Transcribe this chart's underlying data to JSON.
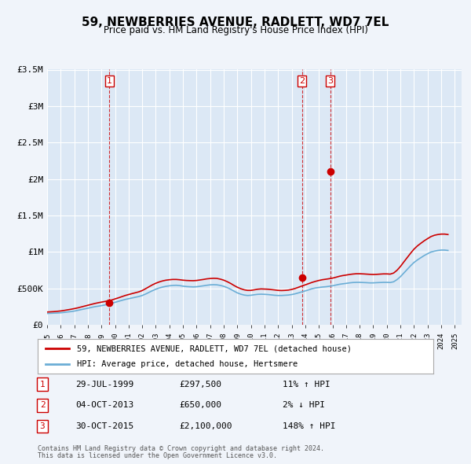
{
  "title": "59, NEWBERRIES AVENUE, RADLETT, WD7 7EL",
  "subtitle": "Price paid vs. HM Land Registry's House Price Index (HPI)",
  "background_color": "#f0f4fa",
  "plot_bg_color": "#dce8f5",
  "grid_color": "#ffffff",
  "ylabel": "",
  "ylim": [
    0,
    3500000
  ],
  "yticks": [
    0,
    500000,
    1000000,
    1500000,
    2000000,
    2500000,
    3000000,
    3500000
  ],
  "ytick_labels": [
    "£0",
    "£500K",
    "£1M",
    "£1.5M",
    "£2M",
    "£2.5M",
    "£3M",
    "£3.5M"
  ],
  "xlim_start": 1995.0,
  "xlim_end": 2025.5,
  "transactions": [
    {
      "num": 1,
      "date": "29-JUL-1999",
      "price": 297500,
      "pct": "11%",
      "dir": "↑",
      "year": 1999.58
    },
    {
      "num": 2,
      "date": "04-OCT-2013",
      "price": 650000,
      "pct": "2%",
      "dir": "↓",
      "year": 2013.75
    },
    {
      "num": 3,
      "date": "30-OCT-2015",
      "price": 2100000,
      "pct": "148%",
      "dir": "↑",
      "year": 2015.83
    }
  ],
  "hpi_line_color": "#6baed6",
  "price_line_color": "#cc0000",
  "transaction_dot_color": "#cc0000",
  "vline_color": "#cc0000",
  "legend_label_price": "59, NEWBERRIES AVENUE, RADLETT, WD7 7EL (detached house)",
  "legend_label_hpi": "HPI: Average price, detached house, Hertsmere",
  "footer1": "Contains HM Land Registry data © Crown copyright and database right 2024.",
  "footer2": "This data is licensed under the Open Government Licence v3.0.",
  "hpi_data": {
    "years": [
      1995.0,
      1995.25,
      1995.5,
      1995.75,
      1996.0,
      1996.25,
      1996.5,
      1996.75,
      1997.0,
      1997.25,
      1997.5,
      1997.75,
      1998.0,
      1998.25,
      1998.5,
      1998.75,
      1999.0,
      1999.25,
      1999.5,
      1999.75,
      2000.0,
      2000.25,
      2000.5,
      2000.75,
      2001.0,
      2001.25,
      2001.5,
      2001.75,
      2002.0,
      2002.25,
      2002.5,
      2002.75,
      2003.0,
      2003.25,
      2003.5,
      2003.75,
      2004.0,
      2004.25,
      2004.5,
      2004.75,
      2005.0,
      2005.25,
      2005.5,
      2005.75,
      2006.0,
      2006.25,
      2006.5,
      2006.75,
      2007.0,
      2007.25,
      2007.5,
      2007.75,
      2008.0,
      2008.25,
      2008.5,
      2008.75,
      2009.0,
      2009.25,
      2009.5,
      2009.75,
      2010.0,
      2010.25,
      2010.5,
      2010.75,
      2011.0,
      2011.25,
      2011.5,
      2011.75,
      2012.0,
      2012.25,
      2012.5,
      2012.75,
      2013.0,
      2013.25,
      2013.5,
      2013.75,
      2014.0,
      2014.25,
      2014.5,
      2014.75,
      2015.0,
      2015.25,
      2015.5,
      2015.75,
      2016.0,
      2016.25,
      2016.5,
      2016.75,
      2017.0,
      2017.25,
      2017.5,
      2017.75,
      2018.0,
      2018.25,
      2018.5,
      2018.75,
      2019.0,
      2019.25,
      2019.5,
      2019.75,
      2020.0,
      2020.25,
      2020.5,
      2020.75,
      2021.0,
      2021.25,
      2021.5,
      2021.75,
      2022.0,
      2022.25,
      2022.5,
      2022.75,
      2023.0,
      2023.25,
      2023.5,
      2023.75,
      2024.0,
      2024.25,
      2024.5
    ],
    "values": [
      155000,
      158000,
      160000,
      162000,
      165000,
      170000,
      176000,
      181000,
      188000,
      198000,
      208000,
      218000,
      228000,
      238000,
      248000,
      255000,
      263000,
      272000,
      282000,
      295000,
      308000,
      322000,
      335000,
      348000,
      358000,
      368000,
      378000,
      388000,
      402000,
      422000,
      445000,
      468000,
      488000,
      505000,
      518000,
      528000,
      535000,
      540000,
      542000,
      538000,
      530000,
      525000,
      522000,
      520000,
      522000,
      528000,
      535000,
      542000,
      548000,
      550000,
      548000,
      540000,
      528000,
      510000,
      488000,
      462000,
      438000,
      420000,
      408000,
      402000,
      405000,
      412000,
      418000,
      420000,
      418000,
      415000,
      410000,
      405000,
      402000,
      402000,
      405000,
      408000,
      415000,
      425000,
      438000,
      452000,
      465000,
      480000,
      495000,
      505000,
      512000,
      518000,
      522000,
      528000,
      535000,
      545000,
      555000,
      562000,
      568000,
      575000,
      580000,
      582000,
      582000,
      580000,
      578000,
      575000,
      575000,
      578000,
      580000,
      582000,
      582000,
      580000,
      590000,
      620000,
      660000,
      710000,
      760000,
      810000,
      855000,
      890000,
      920000,
      950000,
      975000,
      998000,
      1010000,
      1020000,
      1025000,
      1025000,
      1020000
    ]
  },
  "price_data": {
    "years": [
      1995.0,
      1995.25,
      1995.5,
      1995.75,
      1996.0,
      1996.25,
      1996.5,
      1996.75,
      1997.0,
      1997.25,
      1997.5,
      1997.75,
      1998.0,
      1998.25,
      1998.5,
      1998.75,
      1999.0,
      1999.25,
      1999.5,
      1999.75,
      2000.0,
      2000.25,
      2000.5,
      2000.75,
      2001.0,
      2001.25,
      2001.5,
      2001.75,
      2002.0,
      2002.25,
      2002.5,
      2002.75,
      2003.0,
      2003.25,
      2003.5,
      2003.75,
      2004.0,
      2004.25,
      2004.5,
      2004.75,
      2005.0,
      2005.25,
      2005.5,
      2005.75,
      2006.0,
      2006.25,
      2006.5,
      2006.75,
      2007.0,
      2007.25,
      2007.5,
      2007.75,
      2008.0,
      2008.25,
      2008.5,
      2008.75,
      2009.0,
      2009.25,
      2009.5,
      2009.75,
      2010.0,
      2010.25,
      2010.5,
      2010.75,
      2011.0,
      2011.25,
      2011.5,
      2011.75,
      2012.0,
      2012.25,
      2012.5,
      2012.75,
      2013.0,
      2013.25,
      2013.5,
      2013.75,
      2014.0,
      2014.25,
      2014.5,
      2014.75,
      2015.0,
      2015.25,
      2015.5,
      2015.75,
      2016.0,
      2016.25,
      2016.5,
      2016.75,
      2017.0,
      2017.25,
      2017.5,
      2017.75,
      2018.0,
      2018.25,
      2018.5,
      2018.75,
      2019.0,
      2019.25,
      2019.5,
      2019.75,
      2020.0,
      2020.25,
      2020.5,
      2020.75,
      2021.0,
      2021.25,
      2021.5,
      2021.75,
      2022.0,
      2022.25,
      2022.5,
      2022.75,
      2023.0,
      2023.25,
      2023.5,
      2023.75,
      2024.0,
      2024.25,
      2024.5
    ],
    "values": [
      175000,
      178000,
      181000,
      185000,
      190000,
      197000,
      205000,
      213000,
      222000,
      232000,
      244000,
      256000,
      268000,
      280000,
      292000,
      302000,
      311000,
      320000,
      330000,
      340000,
      355000,
      370000,
      386000,
      402000,
      415000,
      428000,
      440000,
      452000,
      470000,
      495000,
      522000,
      548000,
      570000,
      588000,
      602000,
      612000,
      618000,
      622000,
      622000,
      618000,
      612000,
      608000,
      606000,
      605000,
      608000,
      615000,
      622000,
      630000,
      635000,
      638000,
      636000,
      626000,
      612000,
      592000,
      568000,
      540000,
      515000,
      495000,
      480000,
      472000,
      472000,
      480000,
      488000,
      492000,
      490000,
      488000,
      483000,
      478000,
      472000,
      470000,
      472000,
      476000,
      485000,
      498000,
      515000,
      532000,
      548000,
      565000,
      582000,
      596000,
      608000,
      618000,
      625000,
      632000,
      640000,
      652000,
      665000,
      675000,
      682000,
      690000,
      696000,
      700000,
      700000,
      698000,
      695000,
      692000,
      690000,
      692000,
      695000,
      698000,
      698000,
      695000,
      710000,
      748000,
      800000,
      862000,
      922000,
      982000,
      1038000,
      1082000,
      1118000,
      1152000,
      1182000,
      1210000,
      1228000,
      1238000,
      1244000,
      1244000,
      1238000
    ]
  }
}
